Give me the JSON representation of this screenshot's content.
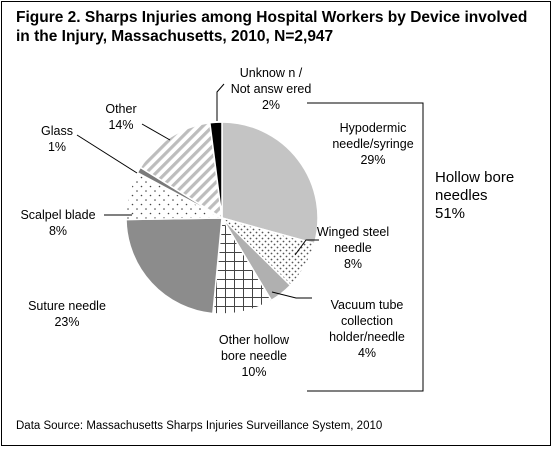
{
  "chart_data": {
    "type": "pie",
    "title": "Figure 2. Sharps Injuries among Hospital Workers by Device involved",
    "title_line2": "in the Injury, Massachusetts, 2010, N=2,947",
    "source": "Data Source: Massachusetts Sharps Injuries Surveillance System, 2010",
    "slices": [
      {
        "label_lines": [
          "Hypodermic",
          "needle/syringe"
        ],
        "value_label": "29%",
        "value": 29,
        "color": "#c4c4c4",
        "pattern": "solid-light"
      },
      {
        "label_lines": [
          "Winged steel",
          "needle"
        ],
        "value_label": "8%",
        "value": 8,
        "color": "#ffffff",
        "pattern": "dotted"
      },
      {
        "label_lines": [
          "Vacuum tube",
          "collection",
          "holder/needle"
        ],
        "value_label": "4%",
        "value": 4,
        "color": "#b0b0b0",
        "pattern": "solid-mid"
      },
      {
        "label_lines": [
          "Other hollow",
          "bore needle"
        ],
        "value_label": "10%",
        "value": 10,
        "color": "#ffffff",
        "pattern": "grid"
      },
      {
        "label_lines": [
          "Suture needle"
        ],
        "value_label": "23%",
        "value": 23,
        "color": "#8c8c8c",
        "pattern": "solid-dark"
      },
      {
        "label_lines": [
          "Scalpel blade"
        ],
        "value_label": "8%",
        "value": 8,
        "color": "#ffffff",
        "pattern": "sparse-dots"
      },
      {
        "label_lines": [
          "Glass"
        ],
        "value_label": "1%",
        "value": 1,
        "color": "#7a7a7a",
        "pattern": "solid-darker"
      },
      {
        "label_lines": [
          "Other"
        ],
        "value_label": "14%",
        "value": 14,
        "color": "#ffffff",
        "pattern": "diagonal"
      },
      {
        "label_lines": [
          "Unknow n  /",
          "Not answ ered"
        ],
        "value_label": "2%",
        "value": 2,
        "color": "#000000",
        "pattern": "solid-black"
      }
    ],
    "group_label": {
      "lines": [
        "Hollow bore",
        "needles"
      ],
      "value_label": "51%"
    }
  }
}
